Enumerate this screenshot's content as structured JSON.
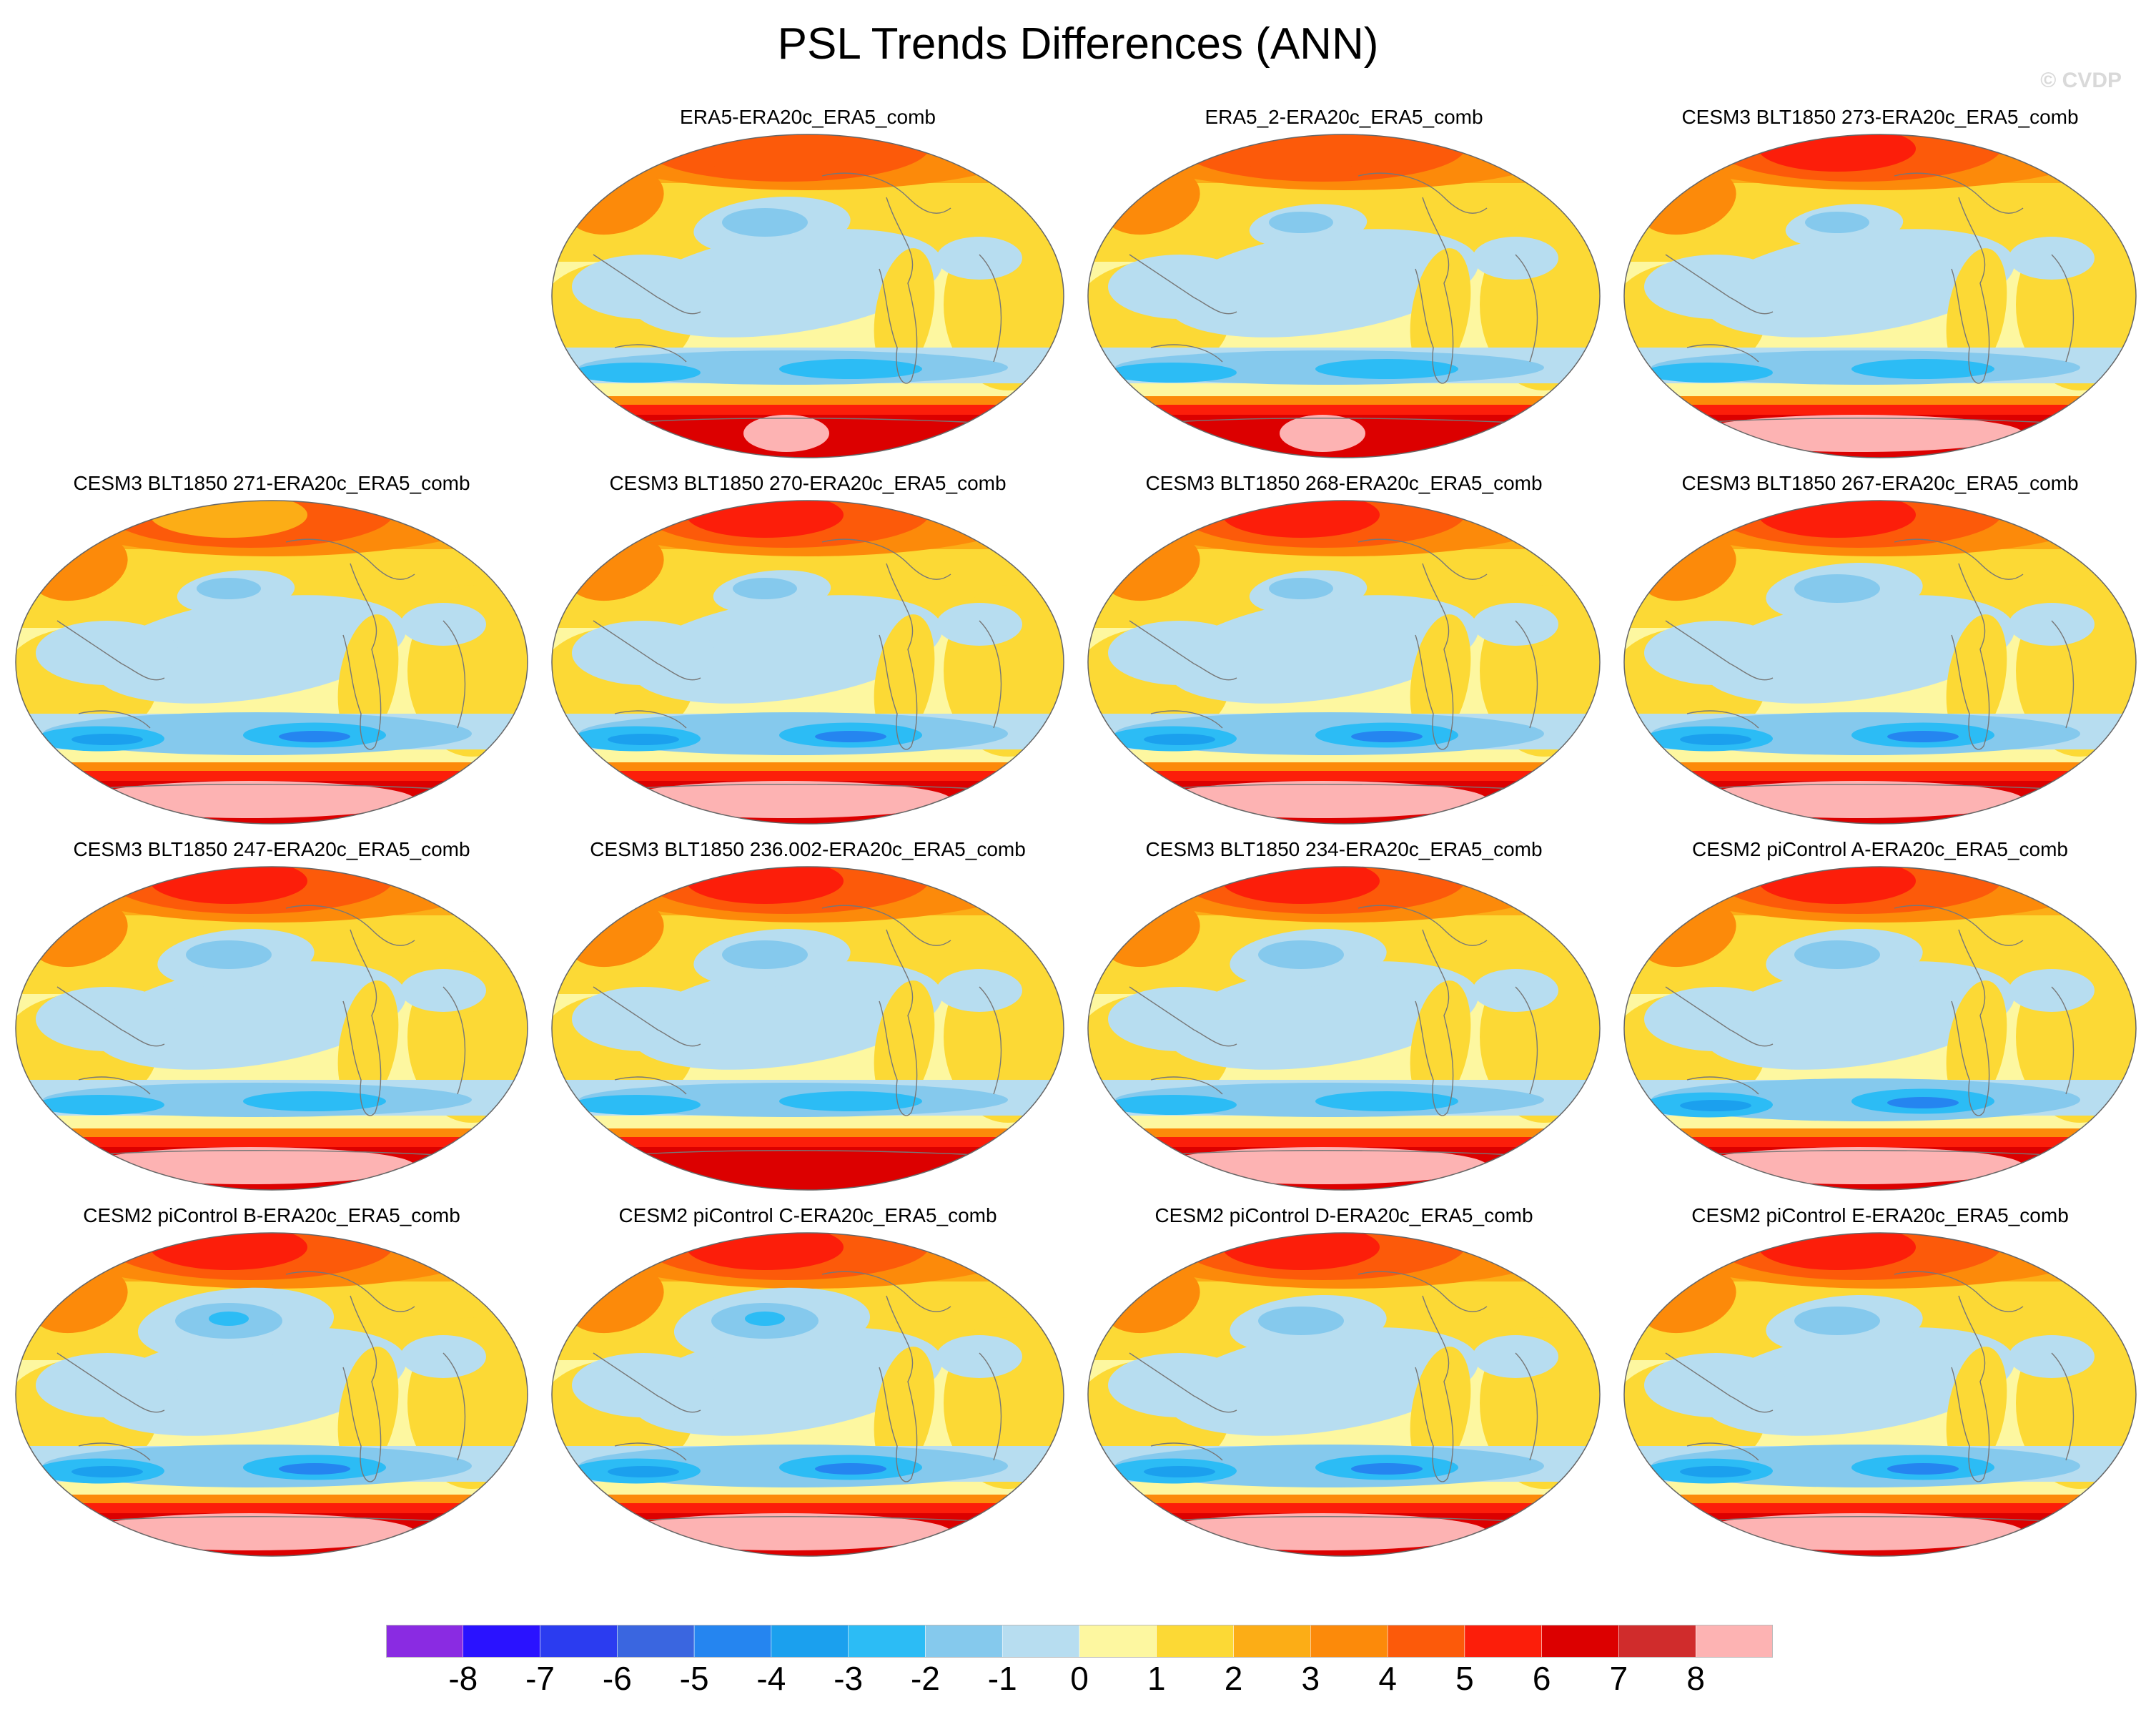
{
  "title": "PSL Trends Differences (ANN)",
  "watermark": "© CVDP",
  "map_data": {
    "projection": "Robinson (global, Pacific-centered)",
    "variable": "PSL trend differences",
    "season": "ANN",
    "panels": [
      {
        "label": "ERA5-ERA20c_ERA5_comb",
        "north_pole": "orange-red",
        "north_pacific_low": "moderate",
        "southern_ocean_low": "moderate",
        "antarctic": "red with pink patch"
      },
      {
        "label": "ERA5_2-ERA20c_ERA5_comb",
        "north_pole": "orange-red",
        "north_pacific_low": "weak",
        "southern_ocean_low": "moderate",
        "antarctic": "red/pink"
      },
      {
        "label": "CESM3 BLT1850 273-ERA20c_ERA5_comb",
        "north_pole": "red",
        "north_pacific_low": "weak",
        "southern_ocean_low": "moderate",
        "antarctic": "pink"
      },
      {
        "label": "CESM3 BLT1850 271-ERA20c_ERA5_comb",
        "north_pole": "orange",
        "north_pacific_low": "weak",
        "southern_ocean_low": "strong",
        "antarctic": "pink"
      },
      {
        "label": "CESM3 BLT1850 270-ERA20c_ERA5_comb",
        "north_pole": "red",
        "north_pacific_low": "weak",
        "southern_ocean_low": "strong",
        "antarctic": "pink"
      },
      {
        "label": "CESM3 BLT1850 268-ERA20c_ERA5_comb",
        "north_pole": "red",
        "north_pacific_low": "weak",
        "southern_ocean_low": "strong",
        "antarctic": "pink"
      },
      {
        "label": "CESM3 BLT1850 267-ERA20c_ERA5_comb",
        "north_pole": "red",
        "north_pacific_low": "moderate",
        "southern_ocean_low": "strong",
        "antarctic": "pink"
      },
      {
        "label": "CESM3 BLT1850 247-ERA20c_ERA5_comb",
        "north_pole": "red",
        "north_pacific_low": "moderate",
        "southern_ocean_low": "moderate",
        "antarctic": "pink"
      },
      {
        "label": "CESM3 BLT1850 236.002-ERA20c_ERA5_comb",
        "north_pole": "red",
        "north_pacific_low": "moderate",
        "southern_ocean_low": "moderate",
        "antarctic": "red"
      },
      {
        "label": "CESM3 BLT1850 234-ERA20c_ERA5_comb",
        "north_pole": "red",
        "north_pacific_low": "moderate",
        "southern_ocean_low": "moderate",
        "antarctic": "pink"
      },
      {
        "label": "CESM2 piControl A-ERA20c_ERA5_comb",
        "north_pole": "red",
        "north_pacific_low": "moderate",
        "southern_ocean_low": "strong",
        "antarctic": "pink"
      },
      {
        "label": "CESM2 piControl B-ERA20c_ERA5_comb",
        "north_pole": "red",
        "north_pacific_low": "strong",
        "southern_ocean_low": "strong",
        "antarctic": "pink"
      },
      {
        "label": "CESM2 piControl C-ERA20c_ERA5_comb",
        "north_pole": "red",
        "north_pacific_low": "strong",
        "southern_ocean_low": "strong",
        "antarctic": "pink"
      },
      {
        "label": "CESM2 piControl D-ERA20c_ERA5_comb",
        "north_pole": "red",
        "north_pacific_low": "moderate",
        "southern_ocean_low": "strong",
        "antarctic": "pink"
      },
      {
        "label": "CESM2 piControl E-ERA20c_ERA5_comb",
        "north_pole": "red",
        "north_pacific_low": "moderate",
        "southern_ocean_low": "strong",
        "antarctic": "pink"
      }
    ]
  },
  "colorbar": {
    "labels": [
      "-8",
      "-7",
      "-6",
      "-5",
      "-4",
      "-3",
      "-2",
      "-1",
      "0",
      "1",
      "2",
      "3",
      "4",
      "5",
      "6",
      "7",
      "8"
    ],
    "colors": [
      "#8a2be2",
      "#2a12ff",
      "#2b3cf0",
      "#3a66e0",
      "#2585f0",
      "#1ba0ee",
      "#2cbcf5",
      "#85c9ed",
      "#b7ddf0",
      "#fdf7a0",
      "#fcd935",
      "#fcad16",
      "#fc8a0a",
      "#fc5a0a",
      "#fc1e0a",
      "#dc0000",
      "#d02c2c",
      "#fdb3b3"
    ]
  }
}
